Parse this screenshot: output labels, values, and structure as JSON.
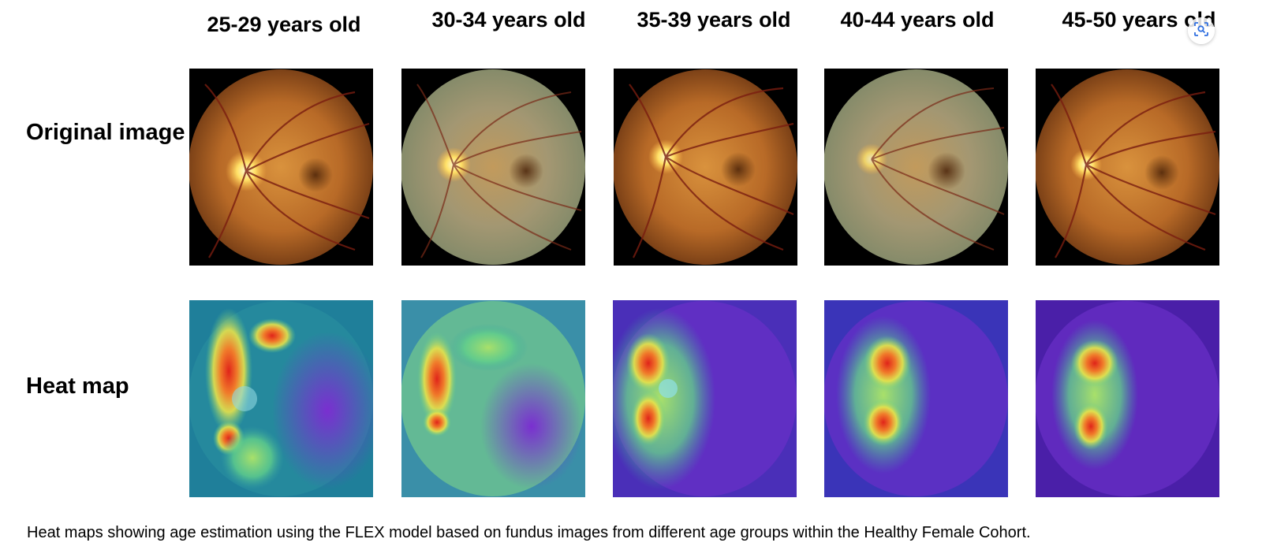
{
  "figure": {
    "columns": [
      {
        "label": "25-29 years old"
      },
      {
        "label": "30-34 years old"
      },
      {
        "label": "35-39 years old"
      },
      {
        "label": "40-44 years old"
      },
      {
        "label": "45-50 years old"
      }
    ],
    "row_labels": {
      "original": "Original image",
      "heatmap": "Heat map"
    },
    "caption": "Heat maps showing age estimation using the FLEX model based on fundus images from different age groups within the Healthy Female Cohort."
  },
  "colors": {
    "fundus_orange": "#c77a2c",
    "fundus_green": "#9aa07a",
    "heat_red": "#e0241a",
    "heat_yellow": "#e8e24a",
    "heat_green": "#62d08a",
    "heat_purple": "#6a2fc8",
    "heat_blue": "#3a34b8"
  },
  "ui": {
    "lens_icon": "visual-search-icon"
  }
}
